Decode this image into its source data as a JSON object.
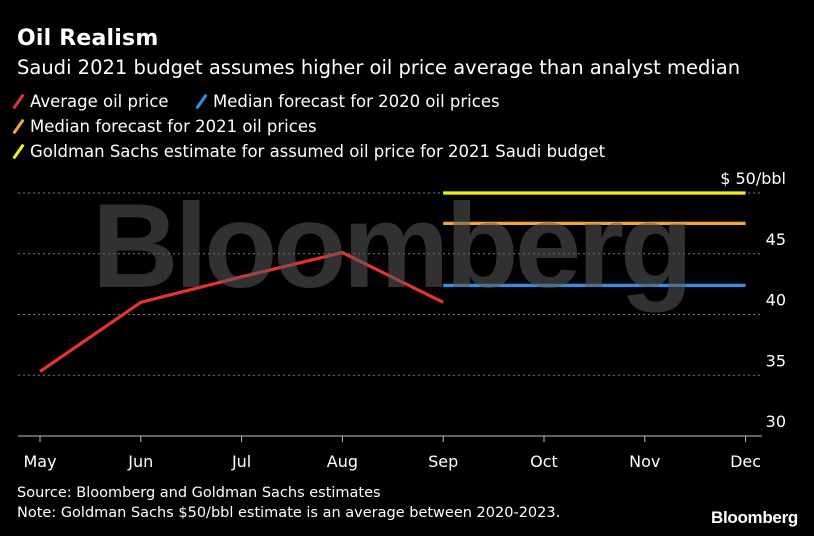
{
  "chart_data": {
    "type": "line",
    "title": "Oil Realism",
    "subtitle": "Saudi 2021 budget assumes higher oil price average than analyst median",
    "categories": [
      "May",
      "Jun",
      "Jul",
      "Aug",
      "Sep",
      "Oct",
      "Nov",
      "Dec"
    ],
    "ylim": [
      30,
      50
    ],
    "yticks": [
      {
        "value": 50,
        "label": "$ 50/bbl"
      },
      {
        "value": 45,
        "label": "45"
      },
      {
        "value": 40,
        "label": "40"
      },
      {
        "value": 35,
        "label": "35"
      },
      {
        "value": 30,
        "label": "30"
      }
    ],
    "series": [
      {
        "name": "Average oil price",
        "color": "#e8322f",
        "kind": "line",
        "x": [
          "May",
          "Jun",
          "Jul",
          "Aug",
          "Sep"
        ],
        "values": [
          35.3,
          41.0,
          43.1,
          45.1,
          41.0
        ]
      },
      {
        "name": "Median forecast for 2020 oil prices",
        "color": "#2e91e6",
        "kind": "hline",
        "x": [
          "Sep",
          "Dec"
        ],
        "values": [
          42.4,
          42.4
        ]
      },
      {
        "name": "Median forecast for 2021 oil prices",
        "color": "#f4a53a",
        "kind": "hline",
        "x": [
          "Sep",
          "Dec"
        ],
        "values": [
          47.5,
          47.5
        ]
      },
      {
        "name": "Goldman Sachs estimate for assumed oil price for 2021 Saudi budget",
        "color": "#f2f211",
        "kind": "hline",
        "x": [
          "Sep",
          "Dec"
        ],
        "values": [
          50,
          50
        ]
      }
    ],
    "grid": true,
    "legend_placement": "top-left"
  },
  "footer": {
    "source": "Source: Bloomberg and Goldman Sachs estimates",
    "note": "Note: Goldman Sachs $50/bbl estimate is an average between 2020-2023."
  },
  "watermark": "Bloomberg",
  "brand": "Bloomberg"
}
